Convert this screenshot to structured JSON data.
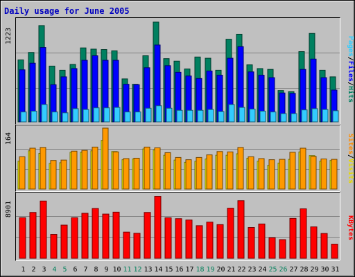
{
  "chart_data": [
    {
      "type": "bar",
      "title": "Daily usage for June 2005",
      "ylabel_parts": [
        {
          "text": "Pages",
          "color": "#33ccff"
        },
        {
          "text": "/",
          "color": "#000000"
        },
        {
          "text": "Files",
          "color": "#0000ff"
        },
        {
          "text": "/",
          "color": "#000000"
        },
        {
          "text": "Hits",
          "color": "#008060"
        }
      ],
      "ymax_label": "1223",
      "ylim": [
        0,
        1223
      ],
      "categories": [
        "1",
        "2",
        "3",
        "4",
        "5",
        "6",
        "7",
        "8",
        "9",
        "10",
        "11",
        "12",
        "13",
        "14",
        "15",
        "16",
        "17",
        "18",
        "19",
        "20",
        "21",
        "22",
        "23",
        "24",
        "25",
        "26",
        "27",
        "28",
        "29",
        "30",
        "31"
      ],
      "weekend_days": [
        "4",
        "5",
        "11",
        "12",
        "18",
        "19",
        "25",
        "26"
      ],
      "grid": true,
      "series": [
        {
          "name": "Hits",
          "color": "#008060",
          "values": [
            750,
            840,
            1165,
            675,
            625,
            695,
            895,
            880,
            875,
            860,
            520,
            455,
            800,
            1207,
            765,
            735,
            640,
            785,
            770,
            625,
            1000,
            1060,
            690,
            645,
            635,
            380,
            365,
            850,
            1070,
            625,
            545
          ]
        },
        {
          "name": "Files",
          "color": "#0000ff",
          "values": [
            630,
            710,
            900,
            450,
            545,
            645,
            745,
            800,
            745,
            745,
            455,
            450,
            655,
            930,
            680,
            600,
            555,
            525,
            615,
            565,
            770,
            910,
            605,
            565,
            535,
            350,
            345,
            635,
            760,
            535,
            385
          ]
        },
        {
          "name": "Pages",
          "color": "#33ccff",
          "values": [
            120,
            130,
            210,
            120,
            110,
            160,
            150,
            170,
            170,
            175,
            120,
            120,
            165,
            195,
            165,
            140,
            140,
            140,
            150,
            125,
            210,
            175,
            155,
            130,
            120,
            100,
            100,
            145,
            160,
            150,
            135
          ]
        }
      ]
    },
    {
      "type": "bar",
      "ylabel_parts": [
        {
          "text": "Sites",
          "color": "#ff8c00"
        },
        {
          "text": "/",
          "color": "#000000"
        },
        {
          "text": "Visits",
          "color": "#e6d800"
        }
      ],
      "ymax_label": "164",
      "ylim": [
        0,
        164
      ],
      "categories": [
        "1",
        "2",
        "3",
        "4",
        "5",
        "6",
        "7",
        "8",
        "9",
        "10",
        "11",
        "12",
        "13",
        "14",
        "15",
        "16",
        "17",
        "18",
        "19",
        "20",
        "21",
        "22",
        "23",
        "24",
        "25",
        "26",
        "27",
        "28",
        "29",
        "30",
        "31"
      ],
      "grid": true,
      "series": [
        {
          "name": "Visits",
          "color": "#ffff00",
          "values": [
            75,
            103,
            96,
            69,
            71,
            99,
            99,
            103,
            131,
            101,
            79,
            81,
            108,
            105,
            91,
            78,
            72,
            75,
            81,
            91,
            91,
            95,
            83,
            75,
            64,
            70,
            80,
            100,
            90,
            75,
            77
          ]
        },
        {
          "name": "Sites",
          "color": "#ff9900",
          "values": [
            87,
            110,
            112,
            77,
            78,
            102,
            104,
            113,
            164,
            100,
            82,
            83,
            113,
            111,
            98,
            85,
            79,
            85,
            92,
            101,
            100,
            112,
            87,
            82,
            79,
            80,
            99,
            110,
            88,
            81,
            80
          ]
        }
      ]
    },
    {
      "type": "bar",
      "ylabel_parts": [
        {
          "text": "KBytes",
          "color": "#ff0000"
        }
      ],
      "ymax_label": "8901",
      "ylim": [
        0,
        8901
      ],
      "categories": [
        "1",
        "2",
        "3",
        "4",
        "5",
        "6",
        "7",
        "8",
        "9",
        "10",
        "11",
        "12",
        "13",
        "14",
        "15",
        "16",
        "17",
        "18",
        "19",
        "20",
        "21",
        "22",
        "23",
        "24",
        "25",
        "26",
        "27",
        "28",
        "29",
        "30",
        "31"
      ],
      "grid": true,
      "series": [
        {
          "name": "KBytes",
          "color": "#ff0000",
          "values": [
            5730,
            6480,
            8090,
            3370,
            4690,
            5730,
            6360,
            7040,
            6250,
            6520,
            3700,
            3540,
            6480,
            8750,
            5720,
            5600,
            5410,
            4610,
            5110,
            4760,
            7080,
            8140,
            4350,
            4850,
            2910,
            2640,
            5640,
            6990,
            4440,
            3510,
            2000
          ]
        }
      ]
    }
  ]
}
